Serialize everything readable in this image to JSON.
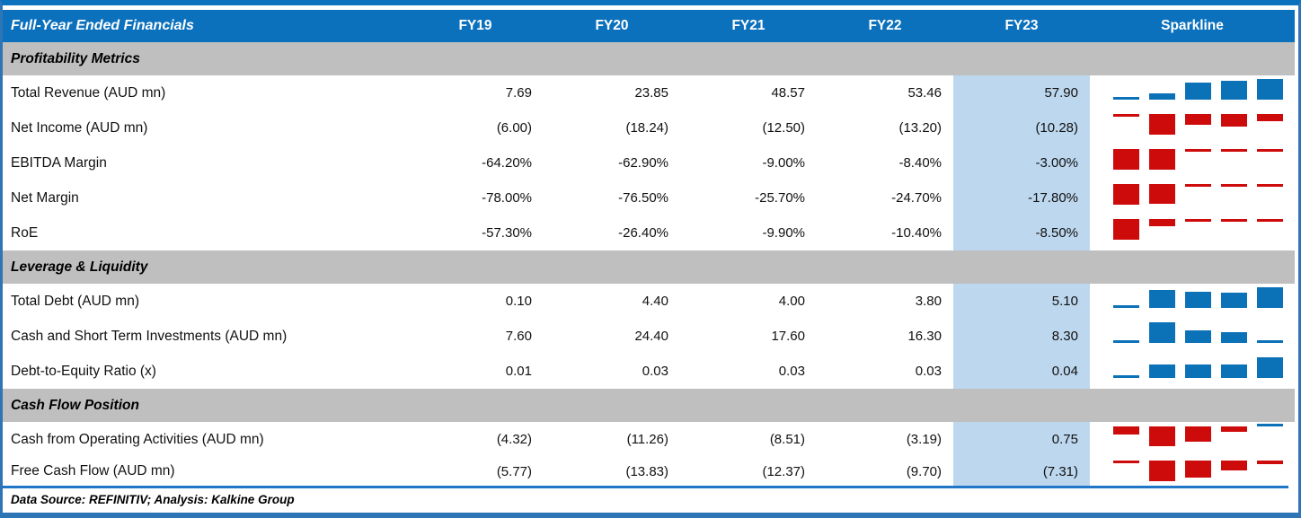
{
  "header": {
    "title": "Full-Year Ended Financials",
    "sparkline_label": "Sparkline"
  },
  "footer": {
    "text": "Data Source: REFINITIV; Analysis: Kalkine Group"
  },
  "colors": {
    "header_blue": "#0C71BD",
    "section_gray": "#BFBFBF",
    "fy23_highlight": "#BDD7EE",
    "outer_border_blue": "#2E75B6",
    "footer_rule_blue": "#2077C8",
    "spark_positive": "#0C72B8",
    "spark_negative": "#CE0B0B"
  },
  "chart_data": {
    "type": "table",
    "title": "Full-Year Ended Financials",
    "categories": [
      "FY19",
      "FY20",
      "FY21",
      "FY22",
      "FY23"
    ],
    "highlight_column": "FY23",
    "sparkline_type": "column",
    "sections": [
      {
        "title": "Profitability Metrics",
        "rows": [
          {
            "label": "Total Revenue (AUD mn)",
            "display": [
              "7.69",
              "23.85",
              "48.57",
              "53.46",
              "57.90"
            ],
            "values": [
              7.69,
              23.85,
              48.57,
              53.46,
              57.9
            ]
          },
          {
            "label": "Net Income (AUD mn)",
            "display": [
              "(6.00)",
              "(18.24)",
              "(12.50)",
              "(13.20)",
              "(10.28)"
            ],
            "values": [
              -6.0,
              -18.24,
              -12.5,
              -13.2,
              -10.28
            ]
          },
          {
            "label": "EBITDA Margin",
            "display": [
              "-64.20%",
              "-62.90%",
              "-9.00%",
              "-8.40%",
              "-3.00%"
            ],
            "values": [
              -64.2,
              -62.9,
              -9.0,
              -8.4,
              -3.0
            ]
          },
          {
            "label": "Net Margin",
            "display": [
              "-78.00%",
              "-76.50%",
              "-25.70%",
              "-24.70%",
              "-17.80%"
            ],
            "values": [
              -78.0,
              -76.5,
              -25.7,
              -24.7,
              -17.8
            ]
          },
          {
            "label": "RoE",
            "display": [
              "-57.30%",
              "-26.40%",
              "-9.90%",
              "-10.40%",
              "-8.50%"
            ],
            "values": [
              -57.3,
              -26.4,
              -9.9,
              -10.4,
              -8.5
            ]
          }
        ]
      },
      {
        "title": "Leverage & Liquidity",
        "rows": [
          {
            "label": "Total Debt (AUD mn)",
            "display": [
              "0.10",
              "4.40",
              "4.00",
              "3.80",
              "5.10"
            ],
            "values": [
              0.1,
              4.4,
              4.0,
              3.8,
              5.1
            ]
          },
          {
            "label": "Cash and Short Term Investments (AUD mn)",
            "display": [
              "7.60",
              "24.40",
              "17.60",
              "16.30",
              "8.30"
            ],
            "values": [
              7.6,
              24.4,
              17.6,
              16.3,
              8.3
            ]
          },
          {
            "label": "Debt-to-Equity Ratio (x)",
            "display": [
              "0.01",
              "0.03",
              "0.03",
              "0.03",
              "0.04"
            ],
            "values": [
              0.01,
              0.03,
              0.03,
              0.03,
              0.04
            ]
          }
        ]
      },
      {
        "title": "Cash Flow Position",
        "rows": [
          {
            "label": "Cash from Operating Activities (AUD mn)",
            "display": [
              "(4.32)",
              "(11.26)",
              "(8.51)",
              "(3.19)",
              "0.75"
            ],
            "values": [
              -4.32,
              -11.26,
              -8.51,
              -3.19,
              0.75
            ]
          },
          {
            "label": "Free Cash Flow (AUD mn)",
            "display": [
              "(5.77)",
              "(13.83)",
              "(12.37)",
              "(9.70)",
              "(7.31)"
            ],
            "values": [
              -5.77,
              -13.83,
              -12.37,
              -9.7,
              -7.31
            ]
          }
        ]
      }
    ]
  }
}
